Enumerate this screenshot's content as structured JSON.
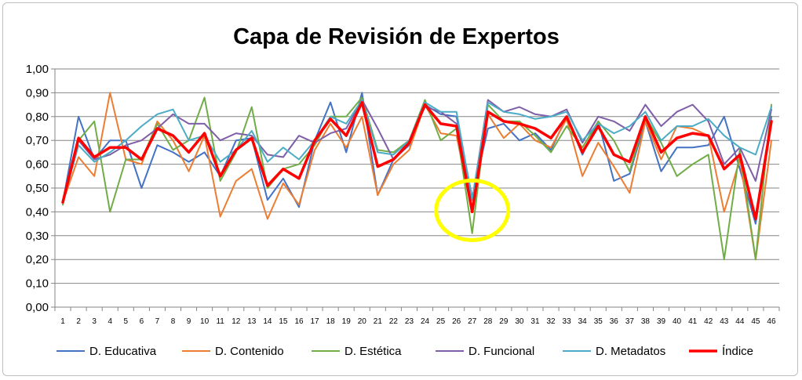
{
  "chart_data": {
    "type": "line",
    "title": "Capa de Revisión de Expertos",
    "xlabel": "",
    "ylabel": "",
    "ylim": [
      0,
      1
    ],
    "ytick_labels": [
      "0,00",
      "0,10",
      "0,20",
      "0,30",
      "0,40",
      "0,50",
      "0,60",
      "0,70",
      "0,80",
      "0,90",
      "1,00"
    ],
    "categories": [
      "1",
      "2",
      "3",
      "4",
      "5",
      "6",
      "7",
      "8",
      "9",
      "10",
      "11",
      "12",
      "13",
      "14",
      "15",
      "16",
      "17",
      "18",
      "19",
      "20",
      "21",
      "22",
      "23",
      "24",
      "25",
      "26",
      "27",
      "28",
      "29",
      "30",
      "31",
      "32",
      "33",
      "34",
      "35",
      "36",
      "37",
      "38",
      "39",
      "40",
      "41",
      "42",
      "43",
      "44",
      "45",
      "46"
    ],
    "grid": true,
    "legend_position": "bottom",
    "series": [
      {
        "name": "D. Educativa",
        "color": "#4472c4",
        "width": 2,
        "values": [
          0.44,
          0.8,
          0.62,
          0.7,
          0.7,
          0.5,
          0.68,
          0.65,
          0.61,
          0.65,
          0.55,
          0.7,
          0.71,
          0.45,
          0.54,
          0.42,
          0.7,
          0.86,
          0.65,
          0.9,
          0.47,
          0.62,
          0.68,
          0.85,
          0.81,
          0.8,
          0.46,
          0.75,
          0.77,
          0.7,
          0.73,
          0.66,
          0.8,
          0.64,
          0.78,
          0.53,
          0.56,
          0.78,
          0.57,
          0.67,
          0.67,
          0.68,
          0.8,
          0.58,
          0.35,
          0.8
        ]
      },
      {
        "name": "D. Contenido",
        "color": "#ed7d31",
        "width": 2,
        "values": [
          0.44,
          0.63,
          0.55,
          0.9,
          0.62,
          0.6,
          0.78,
          0.7,
          0.57,
          0.72,
          0.38,
          0.53,
          0.58,
          0.37,
          0.52,
          0.43,
          0.66,
          0.77,
          0.67,
          0.8,
          0.47,
          0.6,
          0.66,
          0.85,
          0.73,
          0.72,
          0.4,
          0.81,
          0.71,
          0.77,
          0.7,
          0.67,
          0.79,
          0.55,
          0.69,
          0.59,
          0.48,
          0.78,
          0.62,
          0.76,
          0.75,
          0.72,
          0.4,
          0.62,
          0.2,
          0.7
        ]
      },
      {
        "name": "D. Estética",
        "color": "#70ad47",
        "width": 2,
        "values": [
          0.43,
          0.7,
          0.78,
          0.4,
          0.62,
          0.62,
          0.77,
          0.66,
          0.7,
          0.88,
          0.53,
          0.65,
          0.84,
          0.5,
          0.58,
          0.6,
          0.68,
          0.8,
          0.8,
          0.88,
          0.66,
          0.65,
          0.7,
          0.87,
          0.7,
          0.75,
          0.31,
          0.85,
          0.78,
          0.78,
          0.72,
          0.65,
          0.76,
          0.67,
          0.78,
          0.7,
          0.57,
          0.8,
          0.69,
          0.55,
          0.6,
          0.64,
          0.2,
          0.66,
          0.2,
          0.85
        ]
      },
      {
        "name": "D. Funcional",
        "color": "#7f5ea8",
        "width": 2,
        "values": [
          0.44,
          0.7,
          0.62,
          0.64,
          0.68,
          0.7,
          0.75,
          0.81,
          0.77,
          0.77,
          0.7,
          0.73,
          0.72,
          0.64,
          0.63,
          0.72,
          0.69,
          0.73,
          0.75,
          0.87,
          0.75,
          0.62,
          0.7,
          0.84,
          0.82,
          0.77,
          0.45,
          0.87,
          0.82,
          0.84,
          0.81,
          0.8,
          0.83,
          0.69,
          0.8,
          0.78,
          0.74,
          0.85,
          0.76,
          0.82,
          0.85,
          0.78,
          0.6,
          0.67,
          0.53,
          0.83
        ]
      },
      {
        "name": "D. Metadatos",
        "color": "#4bacc6",
        "width": 2,
        "values": [
          0.44,
          0.68,
          0.61,
          0.65,
          0.7,
          0.76,
          0.81,
          0.83,
          0.7,
          0.72,
          0.61,
          0.66,
          0.74,
          0.61,
          0.67,
          0.62,
          0.7,
          0.8,
          0.77,
          0.87,
          0.65,
          0.64,
          0.7,
          0.86,
          0.82,
          0.82,
          0.45,
          0.86,
          0.82,
          0.81,
          0.79,
          0.8,
          0.82,
          0.7,
          0.77,
          0.73,
          0.76,
          0.82,
          0.7,
          0.76,
          0.76,
          0.79,
          0.72,
          0.67,
          0.64,
          0.84
        ]
      },
      {
        "name": "Índice",
        "color": "#ff0000",
        "width": 3.5,
        "values": [
          0.44,
          0.71,
          0.63,
          0.67,
          0.67,
          0.62,
          0.75,
          0.72,
          0.65,
          0.73,
          0.55,
          0.66,
          0.71,
          0.51,
          0.58,
          0.54,
          0.7,
          0.79,
          0.72,
          0.86,
          0.59,
          0.62,
          0.69,
          0.85,
          0.77,
          0.76,
          0.4,
          0.82,
          0.78,
          0.77,
          0.75,
          0.71,
          0.8,
          0.65,
          0.76,
          0.64,
          0.61,
          0.8,
          0.65,
          0.71,
          0.73,
          0.72,
          0.58,
          0.64,
          0.37,
          0.78
        ]
      }
    ],
    "annotations": [
      {
        "type": "circle",
        "category": "27",
        "value": 0.4,
        "color": "#ffff00"
      }
    ]
  }
}
